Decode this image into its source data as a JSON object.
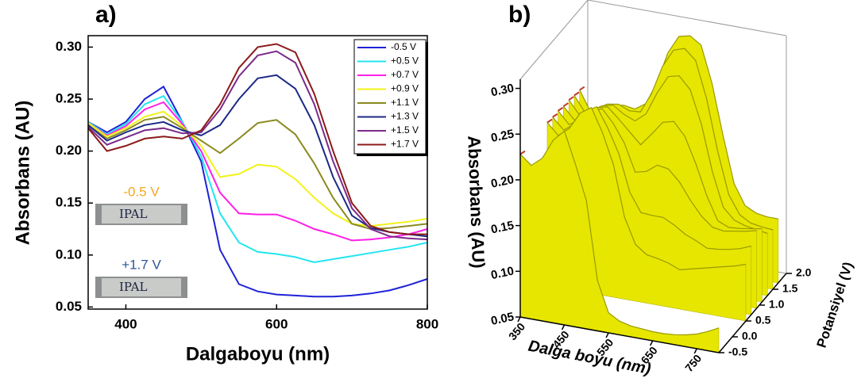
{
  "chart_data": [
    {
      "type": "line",
      "panel_label": "a)",
      "xlabel": "Dalgaboyu (nm)",
      "ylabel": "Absorbans (AU)",
      "x": [
        350,
        375,
        400,
        425,
        450,
        475,
        500,
        525,
        550,
        575,
        600,
        625,
        650,
        675,
        700,
        725,
        750,
        775,
        800
      ],
      "xlim": [
        350,
        800
      ],
      "xticks": [
        400,
        600,
        800
      ],
      "ylim": [
        0.048,
        0.311
      ],
      "yticks": [
        0.05,
        {
          "value": 0.1,
          "label": "0.10"
        },
        0.15,
        {
          "value": 0.2,
          "label": "0.20"
        },
        0.25,
        {
          "value": 0.3,
          "label": "0.30"
        }
      ],
      "legend": "upper right",
      "series": [
        {
          "name": "-0.5 V",
          "color": "#1f22d6",
          "values": [
            0.228,
            0.218,
            0.228,
            0.25,
            0.262,
            0.228,
            0.19,
            0.105,
            0.072,
            0.065,
            0.062,
            0.061,
            0.06,
            0.06,
            0.061,
            0.063,
            0.066,
            0.071,
            0.077
          ]
        },
        {
          "name": "+0.5 V",
          "color": "#22e5f0",
          "values": [
            0.228,
            0.216,
            0.226,
            0.245,
            0.253,
            0.228,
            0.195,
            0.14,
            0.112,
            0.103,
            0.101,
            0.098,
            0.093,
            0.096,
            0.099,
            0.102,
            0.105,
            0.108,
            0.112
          ]
        },
        {
          "name": "+0.7 V",
          "color": "#ff1fe8",
          "values": [
            0.227,
            0.215,
            0.224,
            0.24,
            0.247,
            0.226,
            0.2,
            0.16,
            0.14,
            0.139,
            0.139,
            0.133,
            0.125,
            0.12,
            0.114,
            0.115,
            0.117,
            0.12,
            0.125
          ]
        },
        {
          "name": "+0.9 V",
          "color": "#f2f21a",
          "values": [
            0.227,
            0.214,
            0.222,
            0.233,
            0.238,
            0.224,
            0.205,
            0.175,
            0.178,
            0.187,
            0.185,
            0.173,
            0.155,
            0.14,
            0.13,
            0.128,
            0.13,
            0.132,
            0.135
          ]
        },
        {
          "name": "+1.1 V",
          "color": "#8a8a1f",
          "values": [
            0.225,
            0.212,
            0.22,
            0.23,
            0.233,
            0.222,
            0.21,
            0.198,
            0.212,
            0.227,
            0.23,
            0.216,
            0.188,
            0.155,
            0.13,
            0.125,
            0.126,
            0.128,
            0.13
          ]
        },
        {
          "name": "+1.3 V",
          "color": "#1c2a86",
          "values": [
            0.225,
            0.21,
            0.218,
            0.225,
            0.228,
            0.22,
            0.215,
            0.225,
            0.25,
            0.27,
            0.273,
            0.26,
            0.225,
            0.175,
            0.138,
            0.126,
            0.122,
            0.12,
            0.118
          ]
        },
        {
          "name": "+1.5 V",
          "color": "#7b2a8a",
          "values": [
            0.223,
            0.206,
            0.213,
            0.22,
            0.222,
            0.217,
            0.218,
            0.24,
            0.272,
            0.292,
            0.296,
            0.285,
            0.245,
            0.19,
            0.145,
            0.125,
            0.118,
            0.116,
            0.115
          ]
        },
        {
          "name": "+1.7 V",
          "color": "#8b1a1a",
          "values": [
            0.222,
            0.2,
            0.205,
            0.212,
            0.214,
            0.212,
            0.22,
            0.245,
            0.28,
            0.3,
            0.303,
            0.295,
            0.255,
            0.2,
            0.15,
            0.128,
            0.122,
            0.12,
            0.12
          ]
        }
      ],
      "annotations": [
        {
          "text": "-0.5 V",
          "color": "#f5a623",
          "photo_text": "IPAL"
        },
        {
          "text": "+1.7 V",
          "color": "#2e5597",
          "photo_text": "IPAL"
        }
      ]
    },
    {
      "type": "surface",
      "panel_label": "b)",
      "xlabel": "Dalga boyu (nm)",
      "ylabel": "Potansiyel (V)",
      "zlabel": "Absorbans (AU)",
      "color": "#e6e600",
      "y": [
        -0.5,
        0.5,
        0.7,
        0.9,
        1.1,
        1.3,
        1.5,
        1.7
      ],
      "xlim": [
        350,
        800
      ],
      "xticks": [
        350,
        450,
        550,
        650,
        750
      ],
      "ylim": [
        -0.5,
        2.0
      ],
      "yticks": [
        -0.5,
        {
          "value": 0,
          "label": "0.0"
        },
        0.5,
        {
          "value": 1,
          "label": "1.0"
        },
        1.5,
        {
          "value": 2,
          "label": "2.0"
        }
      ],
      "zlim": [
        0.05,
        0.31
      ],
      "zticks": [
        0.05,
        {
          "value": 0.1,
          "label": "0.10"
        },
        0.15,
        {
          "value": 0.2,
          "label": "0.20"
        },
        0.25,
        {
          "value": 0.3,
          "label": "0.30"
        }
      ]
    }
  ]
}
